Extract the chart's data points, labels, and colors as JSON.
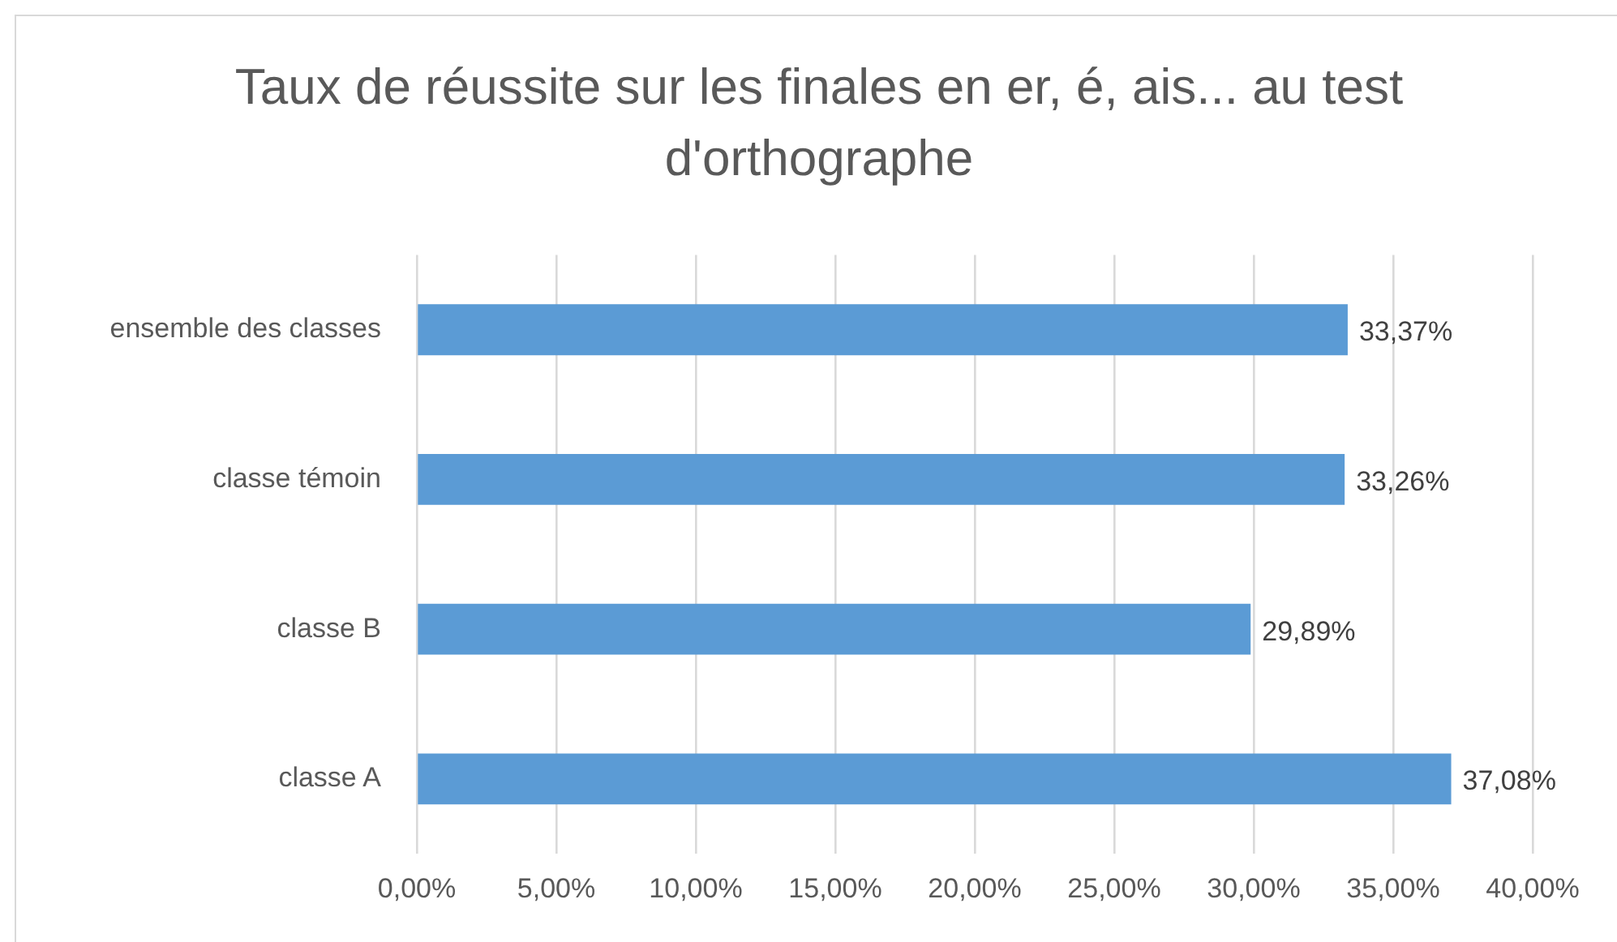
{
  "chart_data": {
    "type": "bar",
    "orientation": "horizontal",
    "title": "Taux de réussite sur les finales en er, é, ais... au test d'orthographe",
    "categories": [
      "ensemble des classes",
      "classe témoin",
      "classe B",
      "classe A"
    ],
    "values": [
      33.37,
      33.26,
      29.89,
      37.08
    ],
    "value_labels": [
      "33,37%",
      "33,26%",
      "29,89%",
      "37,08%"
    ],
    "color": "#5b9bd5",
    "xlim": [
      0,
      40
    ],
    "xticks": [
      {
        "value": 0,
        "label": "0,00%"
      },
      {
        "value": 5,
        "label": "5,00%"
      },
      {
        "value": 10,
        "label": "10,00%"
      },
      {
        "value": 15,
        "label": "15,00%"
      },
      {
        "value": 20,
        "label": "20,00%"
      },
      {
        "value": 25,
        "label": "25,00%"
      },
      {
        "value": 30,
        "label": "30,00%"
      },
      {
        "value": 35,
        "label": "35,00%"
      },
      {
        "value": 40,
        "label": "40,00%"
      }
    ],
    "grid": "x",
    "legend": false
  }
}
